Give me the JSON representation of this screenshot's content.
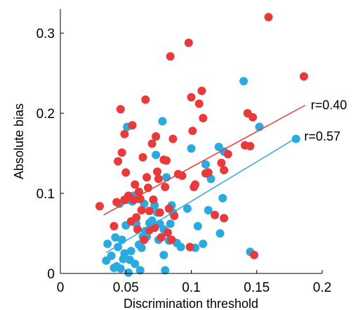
{
  "chart_data": {
    "type": "scatter",
    "title": "",
    "xlabel": "Discrimination threshold",
    "ylabel": "Absolute bias",
    "xlim": [
      0,
      0.2
    ],
    "ylim": [
      0,
      0.33
    ],
    "x_ticks": [
      0,
      0.05,
      0.1,
      0.15,
      0.2
    ],
    "x_tick_labels": [
      "0",
      "0.05",
      "0.1",
      "0.15",
      "0.2"
    ],
    "y_ticks": [
      0,
      0.1,
      0.2,
      0.3
    ],
    "y_tick_labels": [
      "0",
      "0.1",
      "0.2",
      "0.3"
    ],
    "grid": false,
    "series": [
      {
        "color": "#e8393b",
        "correlation_label": "r=0.40",
        "fit": {
          "x": [
            0.033,
            0.187
          ],
          "y": [
            0.073,
            0.21
          ]
        },
        "points": [
          [
            0.03,
            0.084
          ],
          [
            0.041,
            0.059
          ],
          [
            0.043,
            0.089
          ],
          [
            0.044,
            0.14
          ],
          [
            0.046,
            0.205
          ],
          [
            0.047,
            0.151
          ],
          [
            0.049,
            0.174
          ],
          [
            0.049,
            0.092
          ],
          [
            0.05,
            0.126
          ],
          [
            0.052,
            0.097
          ],
          [
            0.054,
            0.065
          ],
          [
            0.055,
            0.185
          ],
          [
            0.056,
            0.092
          ],
          [
            0.057,
            0.111
          ],
          [
            0.058,
            0.07
          ],
          [
            0.059,
            0.055
          ],
          [
            0.06,
            0.102
          ],
          [
            0.061,
            0.093
          ],
          [
            0.062,
            0.079
          ],
          [
            0.063,
            0.145
          ],
          [
            0.064,
            0.042
          ],
          [
            0.065,
            0.217
          ],
          [
            0.066,
            0.12
          ],
          [
            0.067,
            0.107
          ],
          [
            0.068,
            0.078
          ],
          [
            0.068,
            0.054
          ],
          [
            0.07,
            0.162
          ],
          [
            0.071,
            0.092
          ],
          [
            0.072,
            0.057
          ],
          [
            0.073,
            0.171
          ],
          [
            0.074,
            0.127
          ],
          [
            0.075,
            0.118
          ],
          [
            0.076,
            0.076
          ],
          [
            0.077,
            0.045
          ],
          [
            0.079,
            0.142
          ],
          [
            0.08,
            0.108
          ],
          [
            0.081,
            0.141
          ],
          [
            0.082,
            0.051
          ],
          [
            0.083,
            0.081
          ],
          [
            0.084,
            0.271
          ],
          [
            0.085,
            0.042
          ],
          [
            0.086,
            0.168
          ],
          [
            0.087,
            0.072
          ],
          [
            0.09,
            0.124
          ],
          [
            0.093,
            0.122
          ],
          [
            0.098,
            0.288
          ],
          [
            0.099,
            0.033
          ],
          [
            0.1,
            0.22
          ],
          [
            0.101,
            0.178
          ],
          [
            0.102,
            0.108
          ],
          [
            0.103,
            0.111
          ],
          [
            0.106,
            0.212
          ],
          [
            0.108,
            0.228
          ],
          [
            0.109,
            0.194
          ],
          [
            0.111,
            0.125
          ],
          [
            0.113,
            0.126
          ],
          [
            0.118,
            0.073
          ],
          [
            0.123,
            0.138
          ],
          [
            0.125,
            0.129
          ],
          [
            0.125,
            0.069
          ],
          [
            0.128,
            0.149
          ],
          [
            0.141,
            0.16
          ],
          [
            0.143,
            0.2
          ],
          [
            0.145,
            0.159
          ],
          [
            0.147,
            0.195
          ],
          [
            0.148,
            0.023
          ],
          [
            0.159,
            0.32
          ],
          [
            0.186,
            0.246
          ]
        ]
      },
      {
        "color": "#2aaadf",
        "correlation_label": "r=0.57",
        "fit": {
          "x": [
            0.035,
            0.182
          ],
          "y": [
            0.026,
            0.171
          ]
        },
        "points": [
          [
            0.035,
            0.016
          ],
          [
            0.036,
            0.037
          ],
          [
            0.039,
            0.022
          ],
          [
            0.041,
            0.007
          ],
          [
            0.042,
            0.045
          ],
          [
            0.043,
            0.009
          ],
          [
            0.044,
            0.033
          ],
          [
            0.045,
            0.087
          ],
          [
            0.046,
            0.006
          ],
          [
            0.047,
            0.042
          ],
          [
            0.048,
            0.018
          ],
          [
            0.049,
            0.025
          ],
          [
            0.05,
            0.06
          ],
          [
            0.051,
            0.092
          ],
          [
            0.051,
            0.183
          ],
          [
            0.052,
            0.001
          ],
          [
            0.053,
            0.017
          ],
          [
            0.054,
            0.028
          ],
          [
            0.055,
            0.09
          ],
          [
            0.056,
            0.097
          ],
          [
            0.057,
            0.012
          ],
          [
            0.058,
            0.062
          ],
          [
            0.059,
            0.093
          ],
          [
            0.06,
            0.036
          ],
          [
            0.061,
            0.004
          ],
          [
            0.062,
            0.032
          ],
          [
            0.063,
            0.046
          ],
          [
            0.064,
            0.087
          ],
          [
            0.065,
            0.053
          ],
          [
            0.066,
            0.046
          ],
          [
            0.068,
            0.063
          ],
          [
            0.07,
            0.066
          ],
          [
            0.071,
            0.092
          ],
          [
            0.072,
            0.085
          ],
          [
            0.073,
            0.148
          ],
          [
            0.074,
            0.076
          ],
          [
            0.075,
            0.042
          ],
          [
            0.076,
            0.062
          ],
          [
            0.078,
            0.19
          ],
          [
            0.079,
            0.055
          ],
          [
            0.079,
            0.023
          ],
          [
            0.08,
            0.004
          ],
          [
            0.081,
            0.12
          ],
          [
            0.083,
            0.041
          ],
          [
            0.084,
            0.062
          ],
          [
            0.085,
            0.085
          ],
          [
            0.086,
            0.076
          ],
          [
            0.089,
            0.038
          ],
          [
            0.092,
            0.033
          ],
          [
            0.097,
            0.081
          ],
          [
            0.1,
            0.156
          ],
          [
            0.103,
            0.032
          ],
          [
            0.105,
            0.059
          ],
          [
            0.109,
            0.037
          ],
          [
            0.111,
            0.136
          ],
          [
            0.113,
            0.079
          ],
          [
            0.115,
            0.118
          ],
          [
            0.121,
            0.158
          ],
          [
            0.122,
            0.05
          ],
          [
            0.124,
            0.094
          ],
          [
            0.125,
            0.152
          ],
          [
            0.14,
            0.24
          ],
          [
            0.145,
            0.027
          ],
          [
            0.152,
            0.183
          ],
          [
            0.18,
            0.168
          ]
        ]
      }
    ]
  }
}
